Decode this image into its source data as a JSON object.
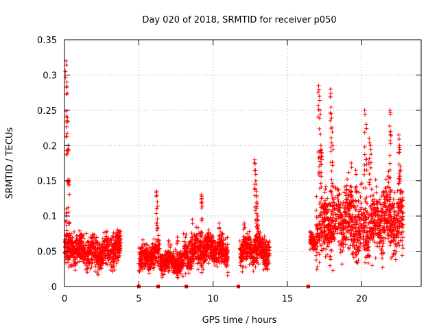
{
  "chart_data": {
    "type": "scatter",
    "title": "Day 020 of 2018, SRMTID for receiver p050",
    "xlabel": "GPS time / hours",
    "ylabel": "SRMTID / TECUs",
    "xlim": [
      0,
      24
    ],
    "ylim": [
      0,
      0.35
    ],
    "xticks": [
      0,
      5,
      10,
      15,
      20
    ],
    "xtick_labels": [
      "0",
      "5",
      "10",
      "15",
      "20"
    ],
    "yticks": [
      0,
      0.05,
      0.1,
      0.15,
      0.2,
      0.25,
      0.3,
      0.35
    ],
    "ytick_labels": [
      "0",
      "0.05",
      "0.1",
      "0.15",
      "0.2",
      "0.25",
      "0.3",
      "0.35"
    ],
    "grid": true,
    "marker": "+",
    "color": "#ff0000",
    "segments": [
      {
        "start": 0.0,
        "end": 3.8,
        "level": 0.05,
        "spread": 0.022,
        "spikes": [
          [
            0.1,
            0.32
          ],
          [
            0.15,
            0.29
          ],
          [
            0.2,
            0.24
          ],
          [
            0.25,
            0.2
          ],
          [
            0.3,
            0.15
          ],
          [
            0.12,
            0.11
          ]
        ]
      },
      {
        "start": 5.0,
        "end": 6.4,
        "level": 0.045,
        "spread": 0.02,
        "spikes": [
          [
            6.2,
            0.135
          ],
          [
            6.25,
            0.12
          ]
        ]
      },
      {
        "start": 6.4,
        "end": 8.0,
        "level": 0.032,
        "spread": 0.016,
        "spikes": [
          [
            7.0,
            0.065
          ],
          [
            7.6,
            0.07
          ]
        ]
      },
      {
        "start": 8.0,
        "end": 11.0,
        "level": 0.05,
        "spread": 0.022,
        "spikes": [
          [
            8.6,
            0.095
          ],
          [
            9.2,
            0.13
          ],
          [
            9.25,
            0.12
          ],
          [
            10.4,
            0.09
          ]
        ]
      },
      {
        "start": 11.8,
        "end": 13.8,
        "level": 0.05,
        "spread": 0.02,
        "spikes": [
          [
            12.8,
            0.18
          ],
          [
            12.85,
            0.165
          ],
          [
            12.9,
            0.135
          ],
          [
            12.95,
            0.12
          ],
          [
            13.0,
            0.1
          ],
          [
            12.1,
            0.09
          ]
        ]
      },
      {
        "start": 16.5,
        "end": 16.9,
        "level": 0.065,
        "spread": 0.012,
        "spikes": []
      },
      {
        "start": 16.9,
        "end": 20.0,
        "level": 0.09,
        "spread": 0.045,
        "spikes": [
          [
            17.1,
            0.285
          ],
          [
            17.15,
            0.27
          ],
          [
            17.2,
            0.25
          ],
          [
            17.25,
            0.2
          ],
          [
            17.3,
            0.19
          ],
          [
            17.9,
            0.28
          ],
          [
            17.95,
            0.245
          ],
          [
            18.0,
            0.225
          ],
          [
            18.05,
            0.2
          ],
          [
            19.3,
            0.175
          ],
          [
            19.6,
            0.165
          ]
        ]
      },
      {
        "start": 20.0,
        "end": 22.8,
        "level": 0.09,
        "spread": 0.045,
        "spikes": [
          [
            20.2,
            0.25
          ],
          [
            20.3,
            0.23
          ],
          [
            20.5,
            0.21
          ],
          [
            20.6,
            0.2
          ],
          [
            21.9,
            0.25
          ],
          [
            21.95,
            0.22
          ],
          [
            22.5,
            0.215
          ],
          [
            22.55,
            0.2
          ],
          [
            22.6,
            0.17
          ]
        ]
      }
    ],
    "zero_markers_x": [
      5.0,
      6.3,
      8.2,
      11.7,
      16.4
    ]
  }
}
